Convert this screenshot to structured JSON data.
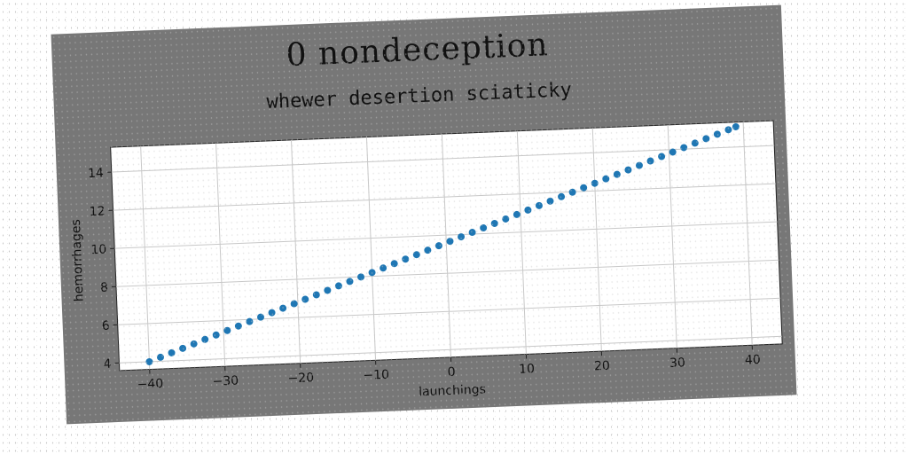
{
  "title": "0 nondeception",
  "chart_data": {
    "type": "scatter",
    "title": "whewer desertion sciaticky",
    "xlabel": "launchings",
    "ylabel": "hemorrhages",
    "xlim": [
      -44,
      44
    ],
    "ylim": [
      3.6,
      15.3
    ],
    "xticks": [
      -40,
      -30,
      -20,
      -10,
      0,
      10,
      20,
      30,
      40
    ],
    "yticks": [
      4,
      6,
      8,
      10,
      12,
      14
    ],
    "grid": true,
    "color": "#1f77b4",
    "series": [
      {
        "x": [
          -40,
          -38.5,
          -37,
          -35.5,
          -34,
          -32.5,
          -31,
          -29.5,
          -28,
          -26.5,
          -25,
          -23.5,
          -22,
          -20.5,
          -19,
          -17.5,
          -16,
          -14.5,
          -13,
          -11.5,
          -10,
          -8.5,
          -7,
          -5.5,
          -4,
          -2.5,
          -1,
          0.5,
          2,
          3.5,
          5,
          6.5,
          8,
          9.5,
          11,
          12.5,
          14,
          15.5,
          17,
          18.5,
          20,
          21.5,
          23,
          24.5,
          26,
          27.5,
          29,
          30.5,
          32,
          33.5,
          35,
          36.5,
          38,
          39
        ],
        "y": [
          4.0,
          4.21,
          4.42,
          4.63,
          4.84,
          5.05,
          5.26,
          5.47,
          5.68,
          5.89,
          6.1,
          6.31,
          6.52,
          6.73,
          6.94,
          7.15,
          7.36,
          7.57,
          7.78,
          7.99,
          8.2,
          8.41,
          8.62,
          8.83,
          9.04,
          9.25,
          9.46,
          9.67,
          9.88,
          10.09,
          10.3,
          10.51,
          10.72,
          10.93,
          11.14,
          11.35,
          11.56,
          11.77,
          11.98,
          12.19,
          12.4,
          12.61,
          12.82,
          13.03,
          13.24,
          13.45,
          13.66,
          13.87,
          14.08,
          14.29,
          14.5,
          14.71,
          14.92,
          15.06
        ]
      }
    ]
  }
}
